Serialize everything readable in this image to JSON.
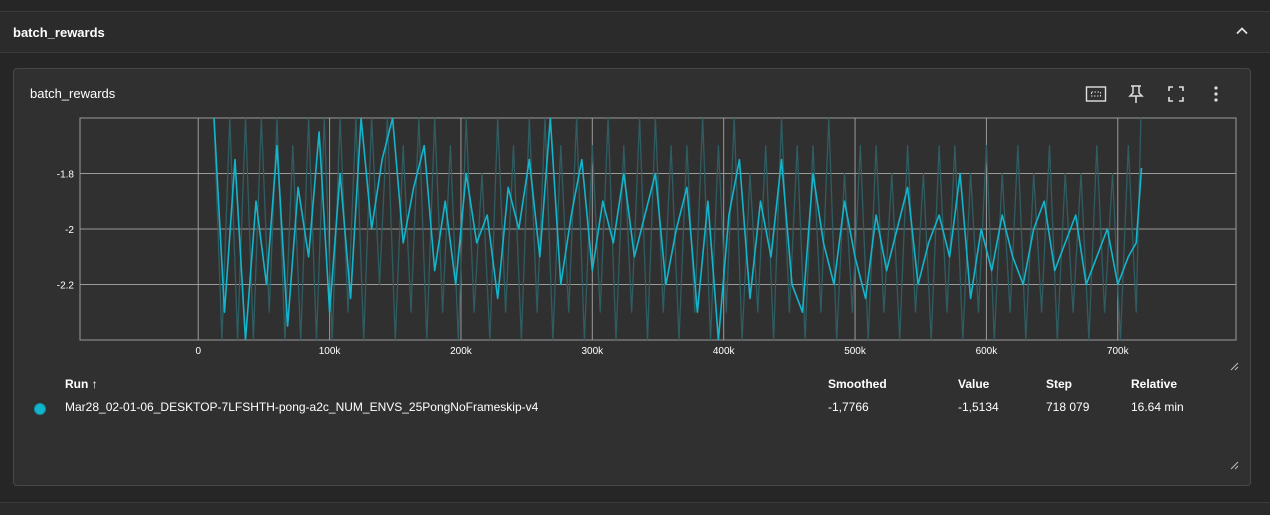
{
  "section": {
    "title": "batch_rewards"
  },
  "card": {
    "title": "batch_rewards"
  },
  "toolbar": {
    "icons": [
      "fit-domain-icon",
      "pin-icon",
      "fullscreen-icon",
      "more-vert-icon"
    ]
  },
  "colors": {
    "accent": "#12b5cb",
    "raw_line": "#2f5d62",
    "grid": "#9a9a9a",
    "background": "#303030"
  },
  "chart_data": {
    "type": "line",
    "title": "",
    "xlabel": "",
    "ylabel": "",
    "xlim": [
      -90000,
      790000
    ],
    "ylim": [
      -2.4,
      -1.6
    ],
    "x_ticks": [
      "0",
      "100k",
      "200k",
      "300k",
      "400k",
      "500k",
      "600k",
      "700k"
    ],
    "x_tick_values": [
      0,
      100000,
      200000,
      300000,
      400000,
      500000,
      600000,
      700000
    ],
    "y_ticks": [
      "-1.8",
      "-2",
      "-2.2"
    ],
    "y_tick_values": [
      -1.8,
      -2.0,
      -2.2
    ],
    "grid": true,
    "series": [
      {
        "smoothed": true,
        "x": [
          12000,
          20000,
          28000,
          36000,
          44000,
          52000,
          60000,
          68000,
          76000,
          84000,
          92000,
          100000,
          108000,
          116000,
          124000,
          132000,
          140000,
          148000,
          156000,
          164000,
          172000,
          180000,
          188000,
          196000,
          204000,
          212000,
          220000,
          228000,
          236000,
          244000,
          252000,
          260000,
          268000,
          276000,
          284000,
          292000,
          300000,
          308000,
          316000,
          324000,
          332000,
          340000,
          348000,
          356000,
          364000,
          372000,
          380000,
          388000,
          396000,
          404000,
          412000,
          420000,
          428000,
          436000,
          444000,
          452000,
          460000,
          468000,
          476000,
          484000,
          492000,
          500000,
          508000,
          516000,
          524000,
          532000,
          540000,
          548000,
          556000,
          564000,
          572000,
          580000,
          588000,
          596000,
          604000,
          612000,
          620000,
          628000,
          636000,
          644000,
          652000,
          660000,
          668000,
          676000,
          684000,
          692000,
          700000,
          708000,
          714000,
          718079
        ],
        "values": [
          -1.6,
          -2.3,
          -1.75,
          -2.4,
          -1.9,
          -2.2,
          -1.7,
          -2.35,
          -1.85,
          -2.1,
          -1.65,
          -2.3,
          -1.8,
          -2.25,
          -1.6,
          -2.0,
          -1.75,
          -1.6,
          -2.05,
          -1.85,
          -1.7,
          -2.15,
          -1.9,
          -2.2,
          -1.8,
          -2.05,
          -1.95,
          -2.25,
          -1.85,
          -2.0,
          -1.75,
          -2.1,
          -1.6,
          -2.2,
          -1.95,
          -1.75,
          -2.15,
          -1.9,
          -2.05,
          -1.8,
          -2.1,
          -1.95,
          -1.8,
          -2.2,
          -2.0,
          -1.85,
          -2.3,
          -1.9,
          -2.4,
          -1.95,
          -1.75,
          -2.25,
          -1.9,
          -2.1,
          -1.75,
          -2.2,
          -2.3,
          -1.8,
          -2.05,
          -2.2,
          -1.9,
          -2.1,
          -2.25,
          -1.95,
          -2.15,
          -2.0,
          -1.85,
          -2.2,
          -2.05,
          -1.95,
          -2.1,
          -1.8,
          -2.25,
          -2.0,
          -2.15,
          -1.95,
          -2.1,
          -2.2,
          -2.0,
          -1.9,
          -2.15,
          -2.05,
          -1.95,
          -2.2,
          -2.1,
          -2.0,
          -2.2,
          -2.1,
          -2.05,
          -1.78
        ]
      },
      {
        "smoothed": false,
        "x": [
          12000,
          18000,
          24000,
          30000,
          36000,
          42000,
          48000,
          54000,
          60000,
          66000,
          72000,
          78000,
          84000,
          90000,
          96000,
          102000,
          108000,
          114000,
          120000,
          126000,
          132000,
          138000,
          144000,
          150000,
          156000,
          162000,
          168000,
          174000,
          180000,
          186000,
          192000,
          198000,
          204000,
          210000,
          216000,
          222000,
          228000,
          234000,
          240000,
          246000,
          252000,
          258000,
          264000,
          270000,
          276000,
          282000,
          288000,
          294000,
          300000,
          306000,
          312000,
          318000,
          324000,
          330000,
          336000,
          342000,
          348000,
          354000,
          360000,
          366000,
          372000,
          378000,
          384000,
          390000,
          396000,
          402000,
          408000,
          414000,
          420000,
          426000,
          432000,
          438000,
          444000,
          450000,
          456000,
          462000,
          468000,
          474000,
          480000,
          486000,
          492000,
          498000,
          504000,
          510000,
          516000,
          522000,
          528000,
          534000,
          540000,
          546000,
          552000,
          558000,
          564000,
          570000,
          576000,
          582000,
          588000,
          594000,
          600000,
          606000,
          612000,
          618000,
          624000,
          630000,
          636000,
          642000,
          648000,
          654000,
          660000,
          666000,
          672000,
          678000,
          684000,
          690000,
          696000,
          702000,
          708000,
          714000,
          718079
        ],
        "values": [
          -1.6,
          -2.4,
          -1.6,
          -2.4,
          -1.6,
          -2.4,
          -1.6,
          -2.3,
          -1.6,
          -2.4,
          -1.7,
          -2.4,
          -1.6,
          -2.4,
          -1.6,
          -2.4,
          -1.6,
          -2.3,
          -1.6,
          -2.4,
          -1.6,
          -2.2,
          -1.6,
          -2.4,
          -1.7,
          -2.3,
          -1.6,
          -2.4,
          -1.6,
          -2.3,
          -1.7,
          -2.4,
          -1.6,
          -2.3,
          -1.8,
          -2.4,
          -1.6,
          -2.3,
          -1.7,
          -2.4,
          -1.6,
          -2.3,
          -1.6,
          -2.4,
          -1.7,
          -2.3,
          -1.6,
          -2.4,
          -1.7,
          -2.3,
          -1.6,
          -2.4,
          -1.7,
          -2.3,
          -1.6,
          -2.4,
          -1.6,
          -2.3,
          -1.7,
          -2.4,
          -1.7,
          -2.3,
          -1.6,
          -2.4,
          -1.7,
          -2.3,
          -1.6,
          -2.4,
          -1.8,
          -2.3,
          -1.7,
          -2.4,
          -1.6,
          -2.3,
          -1.7,
          -2.4,
          -1.7,
          -2.3,
          -1.6,
          -2.4,
          -1.8,
          -2.3,
          -1.7,
          -2.4,
          -1.7,
          -2.3,
          -1.8,
          -2.4,
          -1.7,
          -2.3,
          -1.8,
          -2.4,
          -1.7,
          -2.3,
          -1.7,
          -2.4,
          -1.8,
          -2.3,
          -1.7,
          -2.4,
          -1.8,
          -2.3,
          -1.7,
          -2.4,
          -1.8,
          -2.3,
          -1.7,
          -2.4,
          -1.8,
          -2.3,
          -1.8,
          -2.4,
          -1.7,
          -2.3,
          -1.8,
          -2.4,
          -1.7,
          -2.3,
          -1.51
        ]
      }
    ]
  },
  "table": {
    "headers": {
      "run": "Run ↑",
      "smoothed": "Smoothed",
      "value": "Value",
      "step": "Step",
      "relative": "Relative"
    },
    "rows": [
      {
        "run": "Mar28_02-01-06_DESKTOP-7LFSHTH-pong-a2c_NUM_ENVS_25PongNoFrameskip-v4",
        "smoothed": "-1,7766",
        "value": "-1,5134",
        "step": "718 079",
        "relative": "16.64 min"
      }
    ]
  }
}
